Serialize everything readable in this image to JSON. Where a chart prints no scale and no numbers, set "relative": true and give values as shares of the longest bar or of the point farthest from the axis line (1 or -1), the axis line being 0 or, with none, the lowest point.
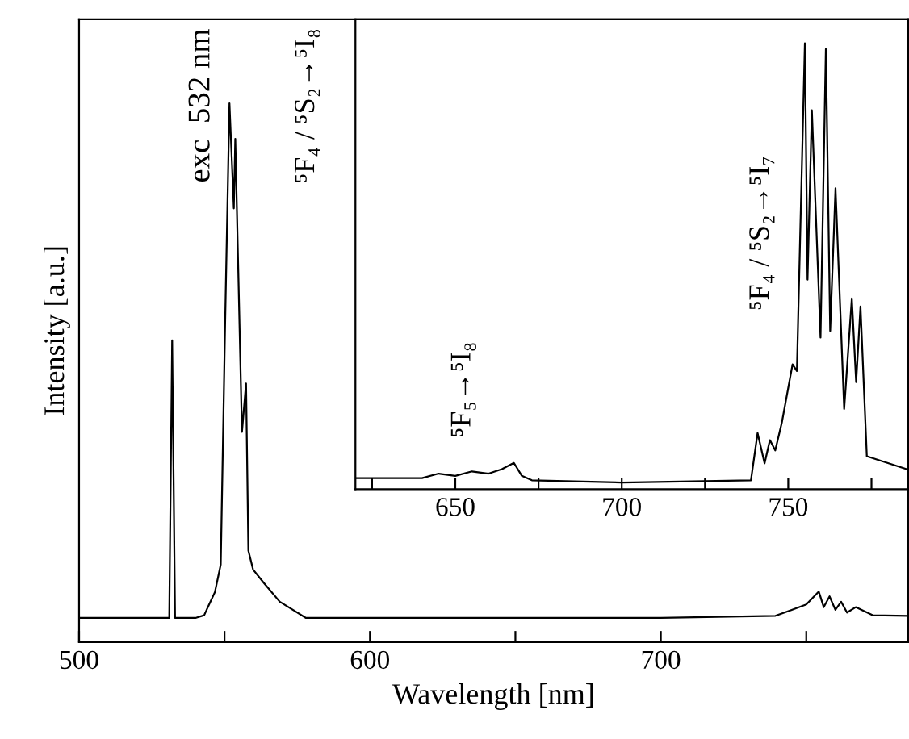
{
  "chart_data": [
    {
      "type": "line",
      "xlabel": "Wavelength [nm]",
      "ylabel": "Intensity [a.u.]",
      "relative": true,
      "xlim": [
        500,
        785
      ],
      "xticks": [
        500,
        {
          "value": 550,
          "label": null
        },
        600,
        {
          "value": 650,
          "label": null
        },
        700,
        {
          "value": 750,
          "label": null
        }
      ],
      "tick_labels": "x",
      "grid": false,
      "legend": false,
      "marker": "none",
      "line_style": "solid",
      "annotations": [
        "exc  532 nm",
        "⁵F₄ / ⁵S₂→⁵I₈"
      ],
      "series": [
        {
          "color": "#000000",
          "x": [
            500,
            531,
            532,
            533,
            540,
            543,
            546.7,
            548.7,
            550.2,
            551.7,
            553.2,
            553.7,
            556,
            557.4,
            558.2,
            559.8,
            563.5,
            569,
            578,
            600,
            700,
            739.4,
            745,
            750,
            754.3,
            756,
            758,
            760,
            762,
            764,
            767,
            772.8,
            785
          ],
          "values": [
            0.045,
            0.045,
            0.56,
            0.045,
            0.045,
            0.05,
            0.093,
            0.144,
            0.59,
            1.0,
            0.805,
            0.934,
            0.39,
            0.48,
            0.17,
            0.135,
            0.11,
            0.075,
            0.045,
            0.045,
            0.045,
            0.049,
            0.06,
            0.07,
            0.094,
            0.065,
            0.085,
            0.06,
            0.075,
            0.055,
            0.065,
            0.05,
            0.049
          ]
        }
      ]
    },
    {
      "type": "line",
      "relative": true,
      "xlim": [
        620,
        786
      ],
      "xticks": [
        {
          "value": 625,
          "label": null
        },
        650,
        {
          "value": 675,
          "label": null
        },
        700,
        {
          "value": 725,
          "label": null
        },
        750,
        {
          "value": 775,
          "label": null
        }
      ],
      "tick_labels": "x",
      "grid": false,
      "legend": false,
      "marker": "none",
      "line_style": "solid",
      "annotations": [
        "⁵F₅→⁵I₈",
        "⁵F₄ / ⁵S₂→⁵I₇"
      ],
      "series": [
        {
          "color": "#000000",
          "x": [
            620,
            640,
            645,
            650,
            655,
            660,
            664,
            667.6,
            670,
            673,
            700,
            738.8,
            740.8,
            742.9,
            744.5,
            746.1,
            748.1,
            751.3,
            752.6,
            755.0,
            755.8,
            757.1,
            759.7,
            761.3,
            762.6,
            764.2,
            766.8,
            769.1,
            770.4,
            771.7,
            773.6,
            786
          ],
          "values": [
            0.025,
            0.025,
            0.035,
            0.03,
            0.04,
            0.035,
            0.045,
            0.059,
            0.03,
            0.02,
            0.015,
            0.02,
            0.126,
            0.058,
            0.11,
            0.087,
            0.15,
            0.28,
            0.265,
            1.0,
            0.47,
            0.85,
            0.34,
            0.987,
            0.355,
            0.675,
            0.18,
            0.428,
            0.24,
            0.41,
            0.074,
            0.044
          ]
        }
      ]
    }
  ]
}
